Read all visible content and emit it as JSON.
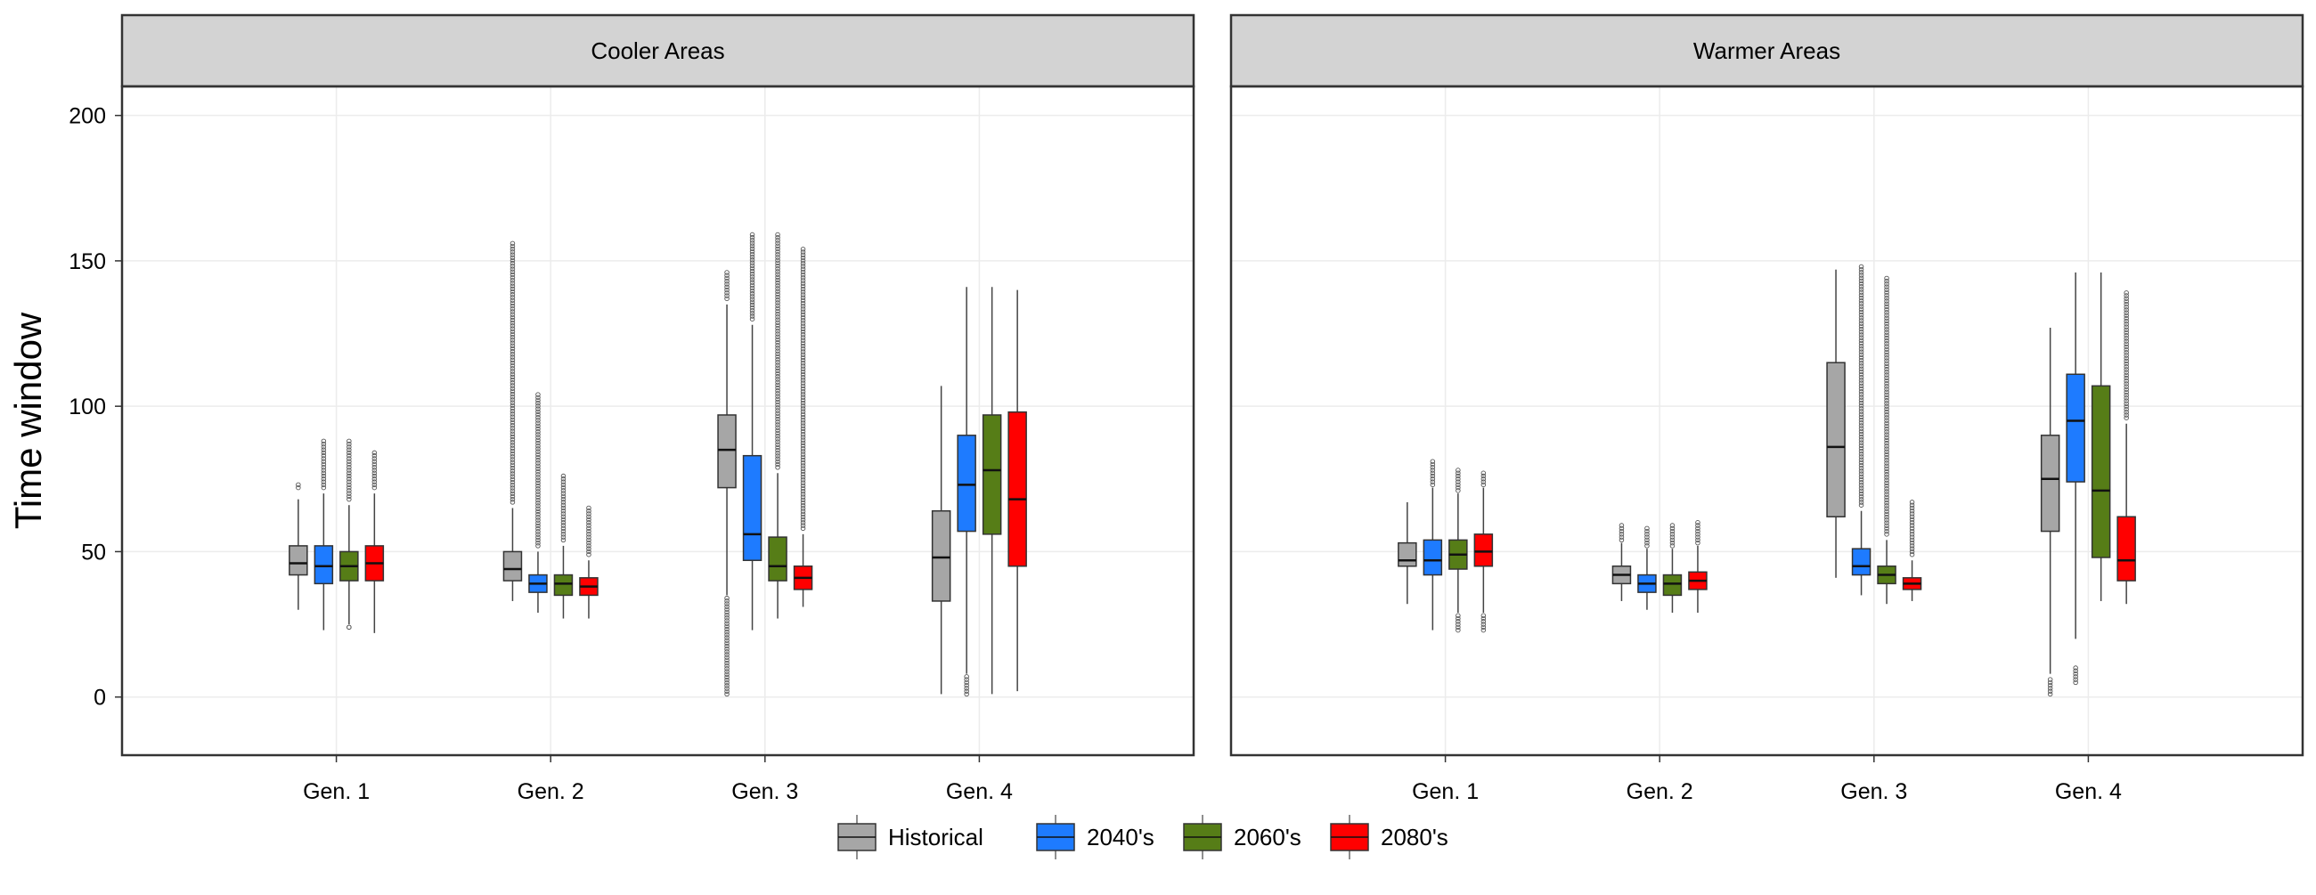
{
  "chart_data": {
    "type": "boxplot",
    "ylabel": "Time window",
    "ylim": [
      -20,
      210
    ],
    "y_ticks": [
      0,
      50,
      100,
      150,
      200
    ],
    "categories": [
      "Gen. 1",
      "Gen. 2",
      "Gen. 3",
      "Gen. 4"
    ],
    "series_names": [
      "Historical",
      "2040's",
      "2060's",
      "2080's"
    ],
    "colors": {
      "Historical": "#A6A6A6",
      "2040's": "#1E7BFF",
      "2060's": "#567D17",
      "2080's": "#FF0000"
    },
    "legend_position": "bottom",
    "grid": true,
    "panels": [
      {
        "title": "Cooler Areas",
        "groups": [
          {
            "category": "Gen. 1",
            "boxes": [
              {
                "series": "Historical",
                "q1": 42,
                "median": 46,
                "q3": 52,
                "whisker_low": 30,
                "whisker_high": 68,
                "outliers_low": [],
                "outliers_high": [
                  72,
                  73
                ]
              },
              {
                "series": "2040's",
                "q1": 39,
                "median": 45,
                "q3": 52,
                "whisker_low": 23,
                "whisker_high": 70,
                "outliers_low": [],
                "outliers_high": [
                  72,
                  88
                ]
              },
              {
                "series": "2060's",
                "q1": 40,
                "median": 45,
                "q3": 50,
                "whisker_low": 25,
                "whisker_high": 66,
                "outliers_low": [
                  24,
                  24
                ],
                "outliers_high": [
                  68,
                  88
                ]
              },
              {
                "series": "2080's",
                "q1": 40,
                "median": 46,
                "q3": 52,
                "whisker_low": 22,
                "whisker_high": 70,
                "outliers_low": [],
                "outliers_high": [
                  72,
                  84
                ]
              }
            ]
          },
          {
            "category": "Gen. 2",
            "boxes": [
              {
                "series": "Historical",
                "q1": 40,
                "median": 44,
                "q3": 50,
                "whisker_low": 33,
                "whisker_high": 65,
                "outliers_low": [],
                "outliers_high": [
                  67,
                  156
                ]
              },
              {
                "series": "2040's",
                "q1": 36,
                "median": 39,
                "q3": 42,
                "whisker_low": 29,
                "whisker_high": 50,
                "outliers_low": [],
                "outliers_high": [
                  52,
                  104
                ]
              },
              {
                "series": "2060's",
                "q1": 35,
                "median": 39,
                "q3": 42,
                "whisker_low": 27,
                "whisker_high": 52,
                "outliers_low": [],
                "outliers_high": [
                  54,
                  76
                ]
              },
              {
                "series": "2080's",
                "q1": 35,
                "median": 38,
                "q3": 41,
                "whisker_low": 27,
                "whisker_high": 47,
                "outliers_low": [],
                "outliers_high": [
                  49,
                  65
                ]
              }
            ]
          },
          {
            "category": "Gen. 3",
            "boxes": [
              {
                "series": "Historical",
                "q1": 72,
                "median": 85,
                "q3": 97,
                "whisker_low": 35,
                "whisker_high": 135,
                "outliers_low": [
                  1,
                  34
                ],
                "outliers_high": [
                  137,
                  146
                ]
              },
              {
                "series": "2040's",
                "q1": 47,
                "median": 56,
                "q3": 83,
                "whisker_low": 23,
                "whisker_high": 128,
                "outliers_low": [],
                "outliers_high": [
                  130,
                  159
                ]
              },
              {
                "series": "2060's",
                "q1": 40,
                "median": 45,
                "q3": 55,
                "whisker_low": 27,
                "whisker_high": 77,
                "outliers_low": [],
                "outliers_high": [
                  79,
                  159
                ]
              },
              {
                "series": "2080's",
                "q1": 37,
                "median": 41,
                "q3": 45,
                "whisker_low": 31,
                "whisker_high": 56,
                "outliers_low": [],
                "outliers_high": [
                  58,
                  154
                ]
              }
            ]
          },
          {
            "category": "Gen. 4",
            "boxes": [
              {
                "series": "Historical",
                "q1": 33,
                "median": 48,
                "q3": 64,
                "whisker_low": 1,
                "whisker_high": 107,
                "outliers_low": [],
                "outliers_high": []
              },
              {
                "series": "2040's",
                "q1": 57,
                "median": 73,
                "q3": 90,
                "whisker_low": 8,
                "whisker_high": 141,
                "outliers_low": [
                  1,
                  7
                ],
                "outliers_high": []
              },
              {
                "series": "2060's",
                "q1": 56,
                "median": 78,
                "q3": 97,
                "whisker_low": 1,
                "whisker_high": 141,
                "outliers_low": [],
                "outliers_high": []
              },
              {
                "series": "2080's",
                "q1": 45,
                "median": 68,
                "q3": 98,
                "whisker_low": 2,
                "whisker_high": 140,
                "outliers_low": [],
                "outliers_high": []
              }
            ]
          }
        ]
      },
      {
        "title": "Warmer Areas",
        "groups": [
          {
            "category": "Gen. 1",
            "boxes": [
              {
                "series": "Historical",
                "q1": 45,
                "median": 47,
                "q3": 53,
                "whisker_low": 32,
                "whisker_high": 67,
                "outliers_low": [],
                "outliers_high": []
              },
              {
                "series": "2040's",
                "q1": 42,
                "median": 47,
                "q3": 54,
                "whisker_low": 23,
                "whisker_high": 72,
                "outliers_low": [],
                "outliers_high": [
                  73,
                  81
                ]
              },
              {
                "series": "2060's",
                "q1": 44,
                "median": 49,
                "q3": 54,
                "whisker_low": 29,
                "whisker_high": 70,
                "outliers_low": [
                  23,
                  28
                ],
                "outliers_high": [
                  71,
                  78
                ]
              },
              {
                "series": "2080's",
                "q1": 45,
                "median": 50,
                "q3": 56,
                "whisker_low": 29,
                "whisker_high": 72,
                "outliers_low": [
                  23,
                  28
                ],
                "outliers_high": [
                  73,
                  77
                ]
              }
            ]
          },
          {
            "category": "Gen. 2",
            "boxes": [
              {
                "series": "Historical",
                "q1": 39,
                "median": 42,
                "q3": 45,
                "whisker_low": 33,
                "whisker_high": 53,
                "outliers_low": [],
                "outliers_high": [
                  54,
                  59
                ]
              },
              {
                "series": "2040's",
                "q1": 36,
                "median": 39,
                "q3": 42,
                "whisker_low": 30,
                "whisker_high": 51,
                "outliers_low": [],
                "outliers_high": [
                  52,
                  58
                ]
              },
              {
                "series": "2060's",
                "q1": 35,
                "median": 39,
                "q3": 42,
                "whisker_low": 29,
                "whisker_high": 51,
                "outliers_low": [],
                "outliers_high": [
                  52,
                  59
                ]
              },
              {
                "series": "2080's",
                "q1": 37,
                "median": 40,
                "q3": 43,
                "whisker_low": 29,
                "whisker_high": 52,
                "outliers_low": [],
                "outliers_high": [
                  53,
                  60
                ]
              }
            ]
          },
          {
            "category": "Gen. 3",
            "boxes": [
              {
                "series": "Historical",
                "q1": 62,
                "median": 86,
                "q3": 115,
                "whisker_low": 41,
                "whisker_high": 147,
                "outliers_low": [],
                "outliers_high": []
              },
              {
                "series": "2040's",
                "q1": 42,
                "median": 45,
                "q3": 51,
                "whisker_low": 35,
                "whisker_high": 64,
                "outliers_low": [],
                "outliers_high": [
                  66,
                  148
                ]
              },
              {
                "series": "2060's",
                "q1": 39,
                "median": 42,
                "q3": 45,
                "whisker_low": 32,
                "whisker_high": 54,
                "outliers_low": [],
                "outliers_high": [
                  56,
                  144
                ]
              },
              {
                "series": "2080's",
                "q1": 37,
                "median": 39,
                "q3": 41,
                "whisker_low": 33,
                "whisker_high": 47,
                "outliers_low": [],
                "outliers_high": [
                  49,
                  67
                ]
              }
            ]
          },
          {
            "category": "Gen. 4",
            "boxes": [
              {
                "series": "Historical",
                "q1": 57,
                "median": 75,
                "q3": 90,
                "whisker_low": 8,
                "whisker_high": 127,
                "outliers_low": [
                  1,
                  6
                ],
                "outliers_high": []
              },
              {
                "series": "2040's",
                "q1": 74,
                "median": 95,
                "q3": 111,
                "whisker_low": 20,
                "whisker_high": 146,
                "outliers_low": [
                  5,
                  10
                ],
                "outliers_high": []
              },
              {
                "series": "2060's",
                "q1": 48,
                "median": 71,
                "q3": 107,
                "whisker_low": 33,
                "whisker_high": 146,
                "outliers_low": [],
                "outliers_high": []
              },
              {
                "series": "2080's",
                "q1": 40,
                "median": 47,
                "q3": 62,
                "whisker_low": 32,
                "whisker_high": 94,
                "outliers_low": [],
                "outliers_high": [
                  96,
                  139
                ]
              }
            ]
          }
        ]
      }
    ]
  }
}
